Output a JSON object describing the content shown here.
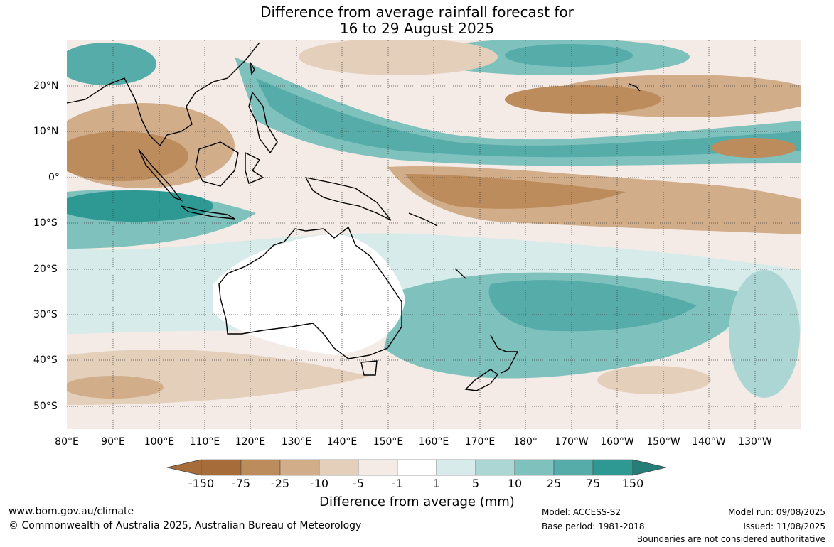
{
  "title": {
    "line1": "Difference from average rainfall forecast for",
    "line2": "16 to 29 August 2025"
  },
  "map": {
    "lon_labels": [
      "80°E",
      "90°E",
      "100°E",
      "110°E",
      "120°E",
      "130°E",
      "140°E",
      "150°E",
      "160°E",
      "170°E",
      "180°",
      "170°W",
      "160°W",
      "150°W",
      "140°W",
      "130°W"
    ],
    "lat_labels": [
      "20°N",
      "10°N",
      "0°",
      "10°S",
      "20°S",
      "30°S",
      "40°S",
      "50°S"
    ],
    "lon_range": [
      80,
      241
    ],
    "lat_range": [
      -55,
      30
    ],
    "projection": "equirectangular",
    "grid": "dotted"
  },
  "colorbar": {
    "labels": [
      "-150",
      "-75",
      "-25",
      "-10",
      "-5",
      "-1",
      "1",
      "5",
      "10",
      "25",
      "75",
      "150"
    ],
    "colors": [
      "#a66d3a",
      "#bc8c5c",
      "#d1ad8a",
      "#e4cfbb",
      "#f4ebe6",
      "#ffffff",
      "#d6ebea",
      "#acd6d4",
      "#7fc1bd",
      "#55aca8",
      "#2e9893",
      "#267d78"
    ],
    "title": "Difference from average (mm)"
  },
  "footer": {
    "website": "www.bom.gov.au/climate",
    "copyright": "© Commonwealth of Australia 2025, Australian Bureau of Meteorology",
    "model": "Model: ACCESS-S2",
    "base_period": "Base period: 1981-2018",
    "model_run": "Model run: 09/08/2025",
    "issued": "Issued: 11/08/2025",
    "disclaimer": "Boundaries are not considered authoritative"
  }
}
